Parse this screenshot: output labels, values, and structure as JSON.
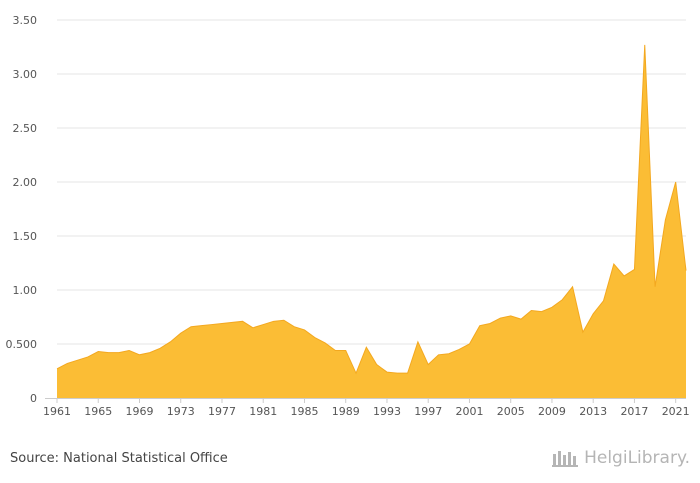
{
  "source": {
    "label": "Source: National Statistical Office"
  },
  "brand": {
    "name": "HelgiLibrary."
  },
  "colors": {
    "area_fill": "#fbbd35",
    "area_line": "#f3a81f",
    "grid": "#e6e6e6",
    "axis": "#cccccc"
  },
  "chart_data": {
    "type": "area",
    "title": "",
    "xlabel": "",
    "ylabel": "",
    "ylim": [
      0,
      3.5
    ],
    "yticks": [
      0,
      0.5,
      1.0,
      1.5,
      2.0,
      2.5,
      3.0,
      3.5
    ],
    "ytick_labels": [
      "0",
      "0.500",
      "1.00",
      "1.50",
      "2.00",
      "2.50",
      "3.00",
      "3.50"
    ],
    "xtick_labels": [
      "1961",
      "1965",
      "1969",
      "1973",
      "1977",
      "1981",
      "1985",
      "1989",
      "1993",
      "1997",
      "2001",
      "2005",
      "2009",
      "2013",
      "2017",
      "2021"
    ],
    "grid": "horizontal",
    "legend": "none",
    "x": [
      1961,
      1962,
      1963,
      1964,
      1965,
      1966,
      1967,
      1968,
      1969,
      1970,
      1971,
      1972,
      1973,
      1974,
      1975,
      1976,
      1977,
      1978,
      1979,
      1980,
      1981,
      1982,
      1983,
      1984,
      1985,
      1986,
      1987,
      1988,
      1989,
      1990,
      1991,
      1992,
      1993,
      1994,
      1995,
      1996,
      1997,
      1998,
      1999,
      2000,
      2001,
      2002,
      2003,
      2004,
      2005,
      2006,
      2007,
      2008,
      2009,
      2010,
      2011,
      2012,
      2013,
      2014,
      2015,
      2016,
      2017,
      2018,
      2019,
      2020,
      2021,
      2022
    ],
    "values": [
      0.27,
      0.32,
      0.35,
      0.38,
      0.43,
      0.42,
      0.42,
      0.44,
      0.4,
      0.42,
      0.46,
      0.52,
      0.6,
      0.66,
      0.67,
      0.68,
      0.69,
      0.7,
      0.71,
      0.65,
      0.68,
      0.71,
      0.72,
      0.66,
      0.63,
      0.56,
      0.51,
      0.44,
      0.44,
      0.23,
      0.47,
      0.31,
      0.24,
      0.23,
      0.23,
      0.52,
      0.31,
      0.4,
      0.41,
      0.45,
      0.5,
      0.67,
      0.69,
      0.74,
      0.76,
      0.73,
      0.81,
      0.8,
      0.84,
      0.91,
      1.03,
      0.61,
      0.78,
      0.9,
      1.24,
      1.13,
      1.19,
      3.27,
      1.03,
      1.65,
      2.0,
      1.18
    ]
  }
}
